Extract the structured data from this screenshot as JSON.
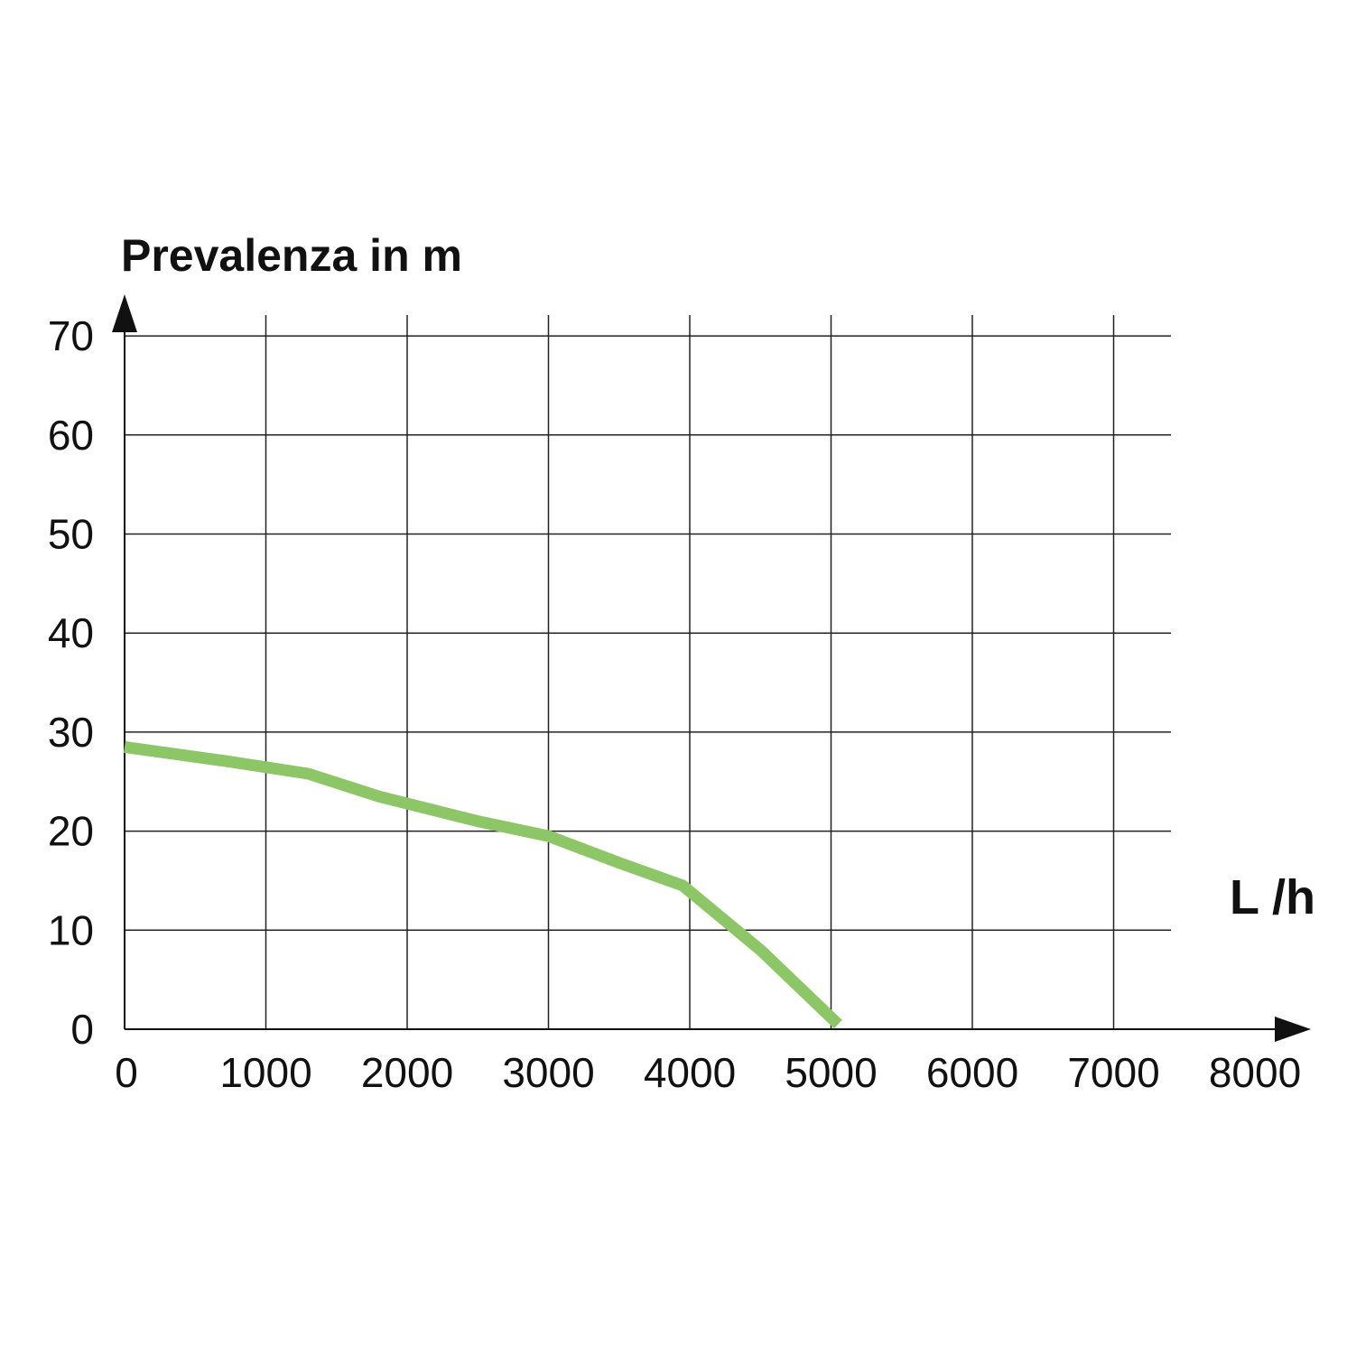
{
  "chart_data": {
    "type": "line",
    "title": "",
    "ylabel": "Prevalenza in m",
    "xlabel": "L /h",
    "xlim": [
      0,
      8000
    ],
    "ylim": [
      0,
      70
    ],
    "x_ticks": [
      "0",
      "1000",
      "2000",
      "3000",
      "4000",
      "5000",
      "6000",
      "7000",
      "8000"
    ],
    "y_ticks": [
      "0",
      "10",
      "20",
      "30",
      "40",
      "50",
      "60",
      "70"
    ],
    "grid": true,
    "series": [
      {
        "color": "#8dc667",
        "x": [
          0,
          750,
          1300,
          1800,
          2500,
          3000,
          3500,
          3950,
          4500,
          5050
        ],
        "y": [
          28.5,
          27,
          25.8,
          23.5,
          21,
          19.5,
          16.8,
          14.5,
          8,
          0.5
        ]
      }
    ]
  }
}
